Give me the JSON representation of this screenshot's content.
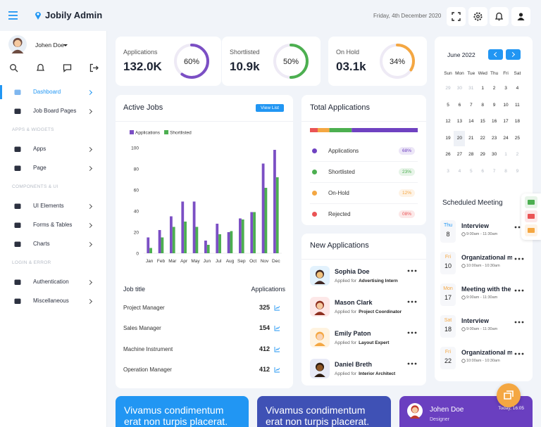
{
  "header": {
    "brand": "Jobily Admin",
    "date": "Friday, 4th December 2020"
  },
  "sidebar": {
    "user": "Johen Doe",
    "sections": [
      {
        "items": [
          "Dashboard",
          "Job Board Pages"
        ]
      },
      {
        "title": "APPS & WIDGETS",
        "items": [
          "Apps",
          "Page"
        ]
      },
      {
        "title": "COMPONENTS & UI",
        "items": [
          "UI Elements",
          "Forms & Tables",
          "Charts"
        ]
      },
      {
        "title": "LOGIN & ERROR",
        "items": [
          "Authentication",
          "Miscellaneous"
        ]
      }
    ]
  },
  "stats": [
    {
      "label": "Applications",
      "value": "132.0K",
      "percent": 60,
      "percent_label": "60%",
      "color": "#7b4fc4"
    },
    {
      "label": "Shortlisted",
      "value": "10.9k",
      "percent": 50,
      "percent_label": "50%",
      "color": "#4caf50"
    },
    {
      "label": "On Hold",
      "value": "03.1k",
      "percent": 34,
      "percent_label": "34%",
      "color": "#f4a742"
    }
  ],
  "chart_data": {
    "type": "bar",
    "title": "Active Jobs",
    "button": "View List",
    "categories": [
      "Jan",
      "Feb",
      "Mar",
      "Apr",
      "May",
      "Jun",
      "Jul",
      "Aug",
      "Sep",
      "Oct",
      "Nov",
      "Dec"
    ],
    "series": [
      {
        "name": "Applications",
        "color": "#7b4fc4",
        "values": [
          15,
          22,
          35,
          49,
          49,
          12,
          28,
          20,
          33,
          39,
          85,
          98
        ]
      },
      {
        "name": "Shortlisted",
        "color": "#4caf50",
        "values": [
          5,
          15,
          25,
          30,
          25,
          8,
          18,
          21,
          32,
          39,
          62,
          72
        ]
      }
    ],
    "ylim": [
      0,
      100
    ],
    "yticks": [
      0,
      20,
      40,
      60,
      80,
      100
    ],
    "grid": false
  },
  "jobs_table": {
    "columns": [
      "Job title",
      "Applications"
    ],
    "rows": [
      [
        "Project Manager",
        325
      ],
      [
        "Sales Manager",
        154
      ],
      [
        "Machine Instrument",
        412
      ],
      [
        "Operation Manager",
        412
      ]
    ]
  },
  "total_applications": {
    "title": "Total Applications",
    "items": [
      {
        "name": "Applications",
        "color": "#6f42c1",
        "value": 68,
        "value_label": "68%"
      },
      {
        "name": "Shortlisted",
        "color": "#4caf50",
        "value": 23,
        "value_label": "23%"
      },
      {
        "name": "On-Hold",
        "color": "#f4a742",
        "value": 12,
        "value_label": "12%"
      },
      {
        "name": "Rejected",
        "color": "#ea5455",
        "value": 8,
        "value_label": "08%"
      }
    ]
  },
  "new_applications": {
    "title": "New Applications",
    "applied_for": "Applied for",
    "items": [
      {
        "name": "Sophia Doe",
        "role": "Advertising Intern"
      },
      {
        "name": "Mason Clark",
        "role": "Project Coordinator"
      },
      {
        "name": "Emily Paton",
        "role": "Layout Expert"
      },
      {
        "name": "Daniel Breth",
        "role": "Interior Architect"
      }
    ]
  },
  "calendar": {
    "month": "June 2022",
    "weekdays": [
      "Sun",
      "Mon",
      "Tue",
      "Wed",
      "Thu",
      "Fri",
      "Sat"
    ],
    "weeks": [
      [
        29,
        30,
        31,
        1,
        2,
        3,
        4
      ],
      [
        5,
        6,
        7,
        8,
        9,
        10,
        11
      ],
      [
        12,
        13,
        14,
        15,
        16,
        17,
        18
      ],
      [
        19,
        20,
        21,
        22,
        23,
        24,
        25
      ],
      [
        26,
        27,
        28,
        29,
        30,
        1,
        2
      ],
      [
        3,
        4,
        5,
        6,
        7,
        8,
        9
      ]
    ]
  },
  "meetings": {
    "title": "Scheduled Meeting",
    "items": [
      {
        "weekday": "Thu",
        "day": 8,
        "title": "Interview",
        "time": "9:00am - 11:30am",
        "color": "#2196f3"
      },
      {
        "weekday": "Fri",
        "day": 10,
        "title": "Organizational m",
        "time": "10:00am - 10:30am",
        "color": "#f4a742"
      },
      {
        "weekday": "Mon",
        "day": 17,
        "title": "Meeting with the",
        "time": "9:00am - 11:30am",
        "color": "#f4a742"
      },
      {
        "weekday": "Sat",
        "day": 18,
        "title": "Interview",
        "time": "9:00am - 11:30am",
        "color": "#f4a742"
      },
      {
        "weekday": "Fri",
        "day": 22,
        "title": "Organizational m",
        "time": "10:00am - 10:30am",
        "color": "#f4a742"
      }
    ]
  },
  "promo_cards": [
    {
      "text": "Vivamus condimentum erat non turpis placerat.",
      "color": "#2196f3"
    },
    {
      "text": "Vivamus condimentum erat non turpis placerat.",
      "color": "#3f51b5"
    }
  ],
  "profile_card": {
    "name": "Johen Doe",
    "role": "Designer",
    "time": "Today, 16:05",
    "color": "#6a3fc0"
  }
}
